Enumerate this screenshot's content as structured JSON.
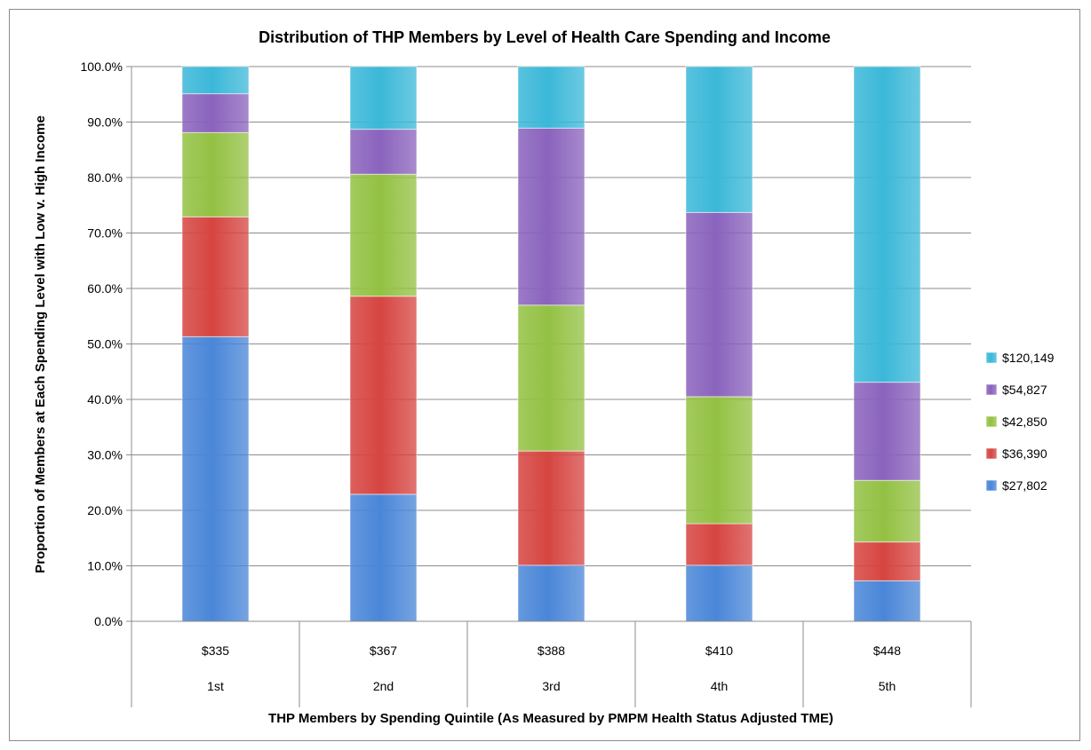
{
  "chart_data": {
    "type": "bar",
    "stacked": true,
    "title": "Distribution of THP Members  by Level of Health Care Spending and Income",
    "xlabel": "THP Members by Spending Quintile (As Measured by PMPM Health Status Adjusted TME)",
    "ylabel": "Proportion of Members at Each Spending Level with Low v. High Income",
    "ylim": [
      0,
      100
    ],
    "yticks": [
      "0.0%",
      "10.0%",
      "20.0%",
      "30.0%",
      "40.0%",
      "50.0%",
      "60.0%",
      "70.0%",
      "80.0%",
      "90.0%",
      "100.0%"
    ],
    "categories": [
      "1st",
      "2nd",
      "3rd",
      "4th",
      "5th"
    ],
    "category_spending": [
      "$335",
      "$367",
      "$388",
      "$410",
      "$448"
    ],
    "grid": true,
    "legend_position": "right",
    "series": [
      {
        "name": "$27,802",
        "color": "#4a86d8",
        "values": [
          51.3,
          22.9,
          10.1,
          10.1,
          7.3
        ]
      },
      {
        "name": "$36,390",
        "color": "#d64541",
        "values": [
          21.6,
          35.7,
          20.6,
          7.5,
          7.0
        ]
      },
      {
        "name": "$42,850",
        "color": "#93c143",
        "values": [
          15.2,
          22.0,
          26.3,
          22.9,
          11.1
        ]
      },
      {
        "name": "$54,827",
        "color": "#8a63bd",
        "values": [
          7.0,
          8.1,
          31.9,
          33.2,
          17.7
        ]
      },
      {
        "name": "$120,149",
        "color": "#3bb8d8",
        "values": [
          4.9,
          11.3,
          11.1,
          26.3,
          56.9
        ]
      }
    ]
  }
}
